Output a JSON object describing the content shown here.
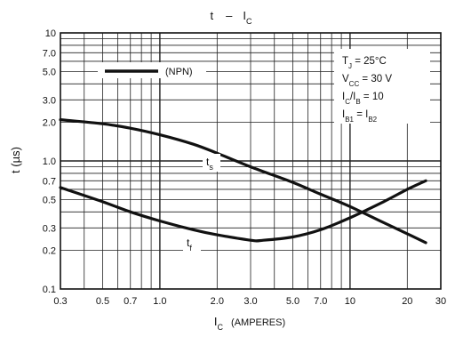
{
  "chart_data": {
    "type": "line",
    "title": "t – I_C",
    "xlabel": "I_C (AMPERES)",
    "ylabel": "t (µs)",
    "xscale": "log",
    "yscale": "log",
    "xlim": [
      0.3,
      30
    ],
    "ylim": [
      0.1,
      10
    ],
    "grid": true,
    "x_ticks": [
      "0.3",
      "0.5",
      "0.7",
      "1.0",
      "2.0",
      "3.0",
      "5.0",
      "7.0",
      "10",
      "20",
      "30"
    ],
    "y_ticks": [
      "0.1",
      "0.2",
      "0.3",
      "0.5",
      "0.7",
      "1.0",
      "2.0",
      "3.0",
      "5.0",
      "7.0",
      "10"
    ],
    "legend": {
      "label": "(NPN)",
      "position": "top-left"
    },
    "conditions": {
      "tj": {
        "main": "T",
        "sub": "J",
        "rest": " = 25°C"
      },
      "vcc": {
        "main": "V",
        "sub": "CC",
        "rest": " = 30 V"
      },
      "ratio": {
        "a": "I",
        "asub": "C",
        "mid": "/I",
        "bsub": "B",
        "rest": " = 10"
      },
      "ib": {
        "a": "I",
        "asub": "B1",
        "mid": " = I",
        "bsub": "B2"
      }
    },
    "series": [
      {
        "label": "ts",
        "x": [
          0.3,
          0.5,
          0.7,
          1.0,
          1.5,
          2.0,
          3.0,
          5.0,
          7.0,
          10,
          15,
          20,
          25
        ],
        "y": [
          2.1,
          1.95,
          1.8,
          1.6,
          1.35,
          1.15,
          0.9,
          0.68,
          0.55,
          0.44,
          0.33,
          0.27,
          0.23
        ]
      },
      {
        "label": "tf",
        "x": [
          0.3,
          0.5,
          0.7,
          1.0,
          1.5,
          2.0,
          3.0,
          3.5,
          5.0,
          7.0,
          10,
          15,
          20,
          25
        ],
        "y": [
          0.62,
          0.48,
          0.4,
          0.34,
          0.29,
          0.265,
          0.24,
          0.24,
          0.255,
          0.29,
          0.36,
          0.48,
          0.6,
          0.7
        ]
      }
    ]
  }
}
